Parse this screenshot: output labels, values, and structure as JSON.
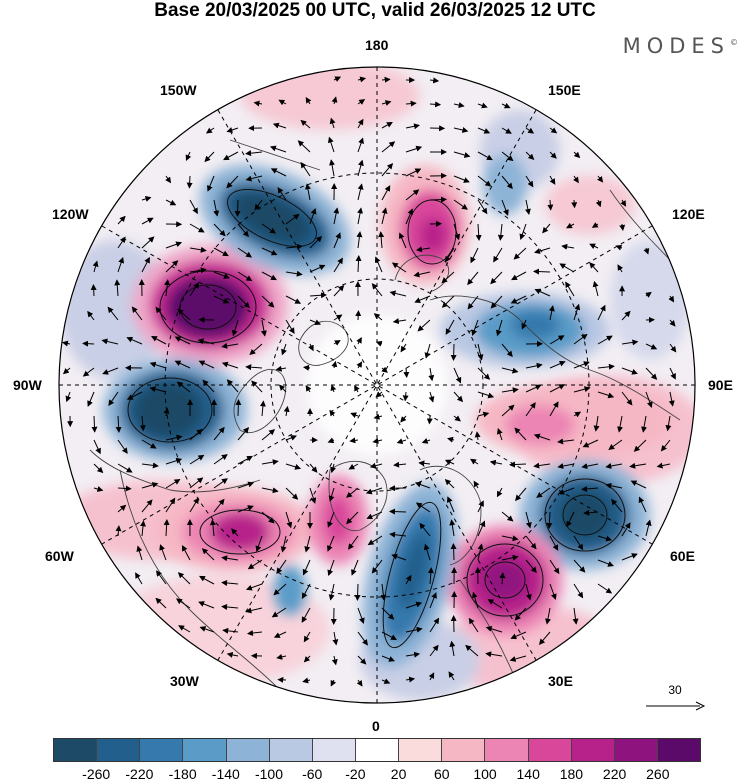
{
  "title": "Base 20/03/2025 00 UTC, valid 26/03/2025 12 UTC",
  "brand": "MODES",
  "brand_mark": "©",
  "map": {
    "projection": "north polar stereographic",
    "longitude_labels": {
      "top": "180",
      "bottom": "0",
      "left": "90W",
      "right": "90E",
      "upper_left_1": "150W",
      "upper_left_2": "120W",
      "upper_right_1": "150E",
      "upper_right_2": "120E",
      "lower_left_1": "60W",
      "lower_left_2": "30W",
      "lower_right_1": "60E",
      "lower_right_2": "30E"
    },
    "reference_vector_label": "30"
  },
  "colorbar": {
    "tick_labels": [
      "-260",
      "-220",
      "-180",
      "-140",
      "-100",
      "-60",
      "-20",
      "20",
      "60",
      "100",
      "140",
      "180",
      "220",
      "260"
    ],
    "colors": [
      "#1d4a66",
      "#225f8c",
      "#3679ad",
      "#5a9bc8",
      "#8db3d6",
      "#b9c8e3",
      "#dfe1f0",
      "#ffffff",
      "#fbdcdc",
      "#f6b7c4",
      "#ec84b4",
      "#d9479b",
      "#b7218a",
      "#8f137f",
      "#5c0a6a"
    ]
  },
  "anomaly_centers": [
    {
      "sign": "positive",
      "lon_label": "120W",
      "strength": 260
    },
    {
      "sign": "negative",
      "lon_label": "150W",
      "strength": -220
    },
    {
      "sign": "negative",
      "lon_label": "90W",
      "strength": -240
    },
    {
      "sign": "positive",
      "lon_label": "60W",
      "strength": 180
    },
    {
      "sign": "positive",
      "lon_label": "150E",
      "strength": 160
    },
    {
      "sign": "negative",
      "lon_label": "120E",
      "strength": -140
    },
    {
      "sign": "positive",
      "lon_label": "90E",
      "strength": 100
    },
    {
      "sign": "negative",
      "lon_label": "60E",
      "strength": -200
    },
    {
      "sign": "positive",
      "lon_label": "30E",
      "strength": 200
    },
    {
      "sign": "negative",
      "lon_label": "0",
      "strength": -140
    }
  ]
}
